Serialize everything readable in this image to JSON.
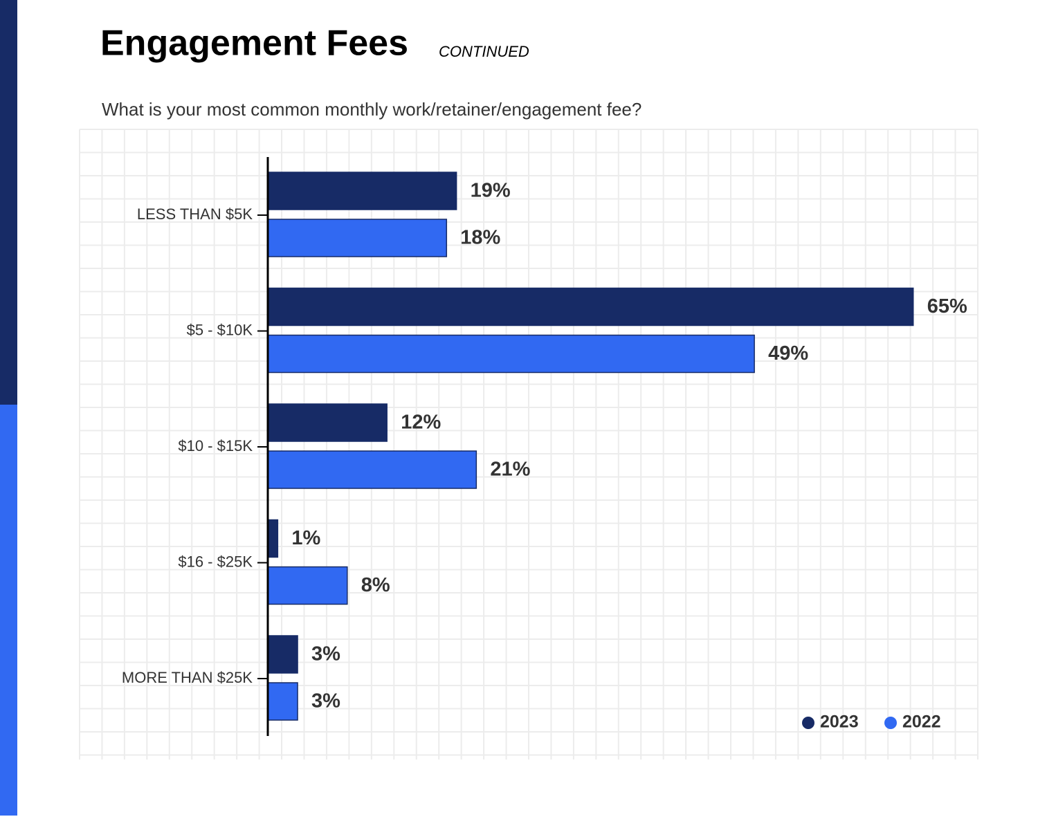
{
  "chart_data": {
    "type": "bar",
    "orientation": "horizontal",
    "title": "Engagement Fees",
    "title_tag": "CONTINUED",
    "subtitle": "What is your most common monthly work/retainer/engagement fee?",
    "categories": [
      "LESS THAN $5K",
      "$5 - $10K",
      "$10 - $15K",
      "$16 - $25K",
      "MORE THAN $25K"
    ],
    "series": [
      {
        "name": "2023",
        "color": "#172b66",
        "values": [
          19,
          65,
          12,
          1,
          3
        ],
        "value_labels": [
          "19%",
          "65%",
          "12%",
          "1%",
          "3%"
        ]
      },
      {
        "name": "2022",
        "color": "#3169f2",
        "values": [
          18,
          49,
          21,
          8,
          3
        ],
        "value_labels": [
          "18%",
          "49%",
          "21%",
          "8%",
          "3%"
        ]
      }
    ],
    "xlim": [
      0,
      71.5
    ],
    "grid": true,
    "legend": "bottom-right"
  }
}
